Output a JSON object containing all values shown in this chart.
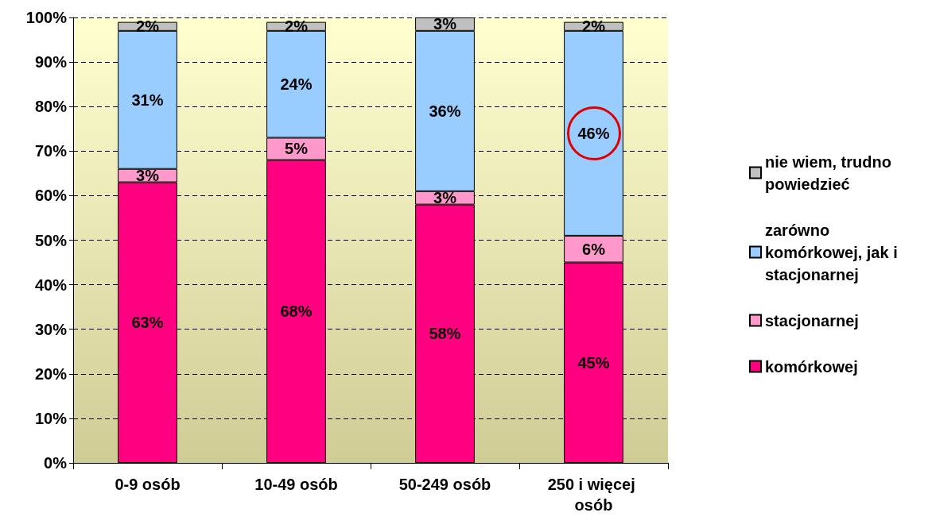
{
  "chart_data": {
    "type": "bar",
    "stacked": true,
    "categories": [
      "0-9 osób",
      "10-49 osób",
      "50-249 osób",
      "250 i więcej osób"
    ],
    "series": [
      {
        "name": "komórkowej",
        "color": "#ff0080",
        "values": [
          63,
          68,
          58,
          45
        ],
        "value_labels": [
          "63%",
          "68%",
          "58%",
          "45%"
        ]
      },
      {
        "name": "stacjonarnej",
        "color": "#ff99cc",
        "values": [
          3,
          5,
          3,
          6
        ],
        "value_labels": [
          "3%",
          "5%",
          "3%",
          "6%"
        ]
      },
      {
        "name": "zarówno komórkowej, jak i stacjonarnej",
        "color": "#99ccff",
        "values": [
          31,
          24,
          36,
          46
        ],
        "value_labels": [
          "31%",
          "24%",
          "36%",
          "46%"
        ]
      },
      {
        "name": "nie wiem, trudno powiedzieć",
        "color": "#c0c0c0",
        "values": [
          2,
          2,
          3,
          2
        ],
        "value_labels": [
          "2%",
          "2%",
          "3%",
          "2%"
        ]
      }
    ],
    "ylim": [
      0,
      100
    ],
    "yticks": [
      {
        "value": 0,
        "label": "0%"
      },
      {
        "value": 10,
        "label": "10%"
      },
      {
        "value": 20,
        "label": "20%"
      },
      {
        "value": 30,
        "label": "30%"
      },
      {
        "value": 40,
        "label": "40%"
      },
      {
        "value": 50,
        "label": "50%"
      },
      {
        "value": 60,
        "label": "60%"
      },
      {
        "value": 70,
        "label": "70%"
      },
      {
        "value": 80,
        "label": "80%"
      },
      {
        "value": 90,
        "label": "90%"
      },
      {
        "value": 100,
        "label": "100%"
      }
    ],
    "grid": "y",
    "legend": "right"
  }
}
